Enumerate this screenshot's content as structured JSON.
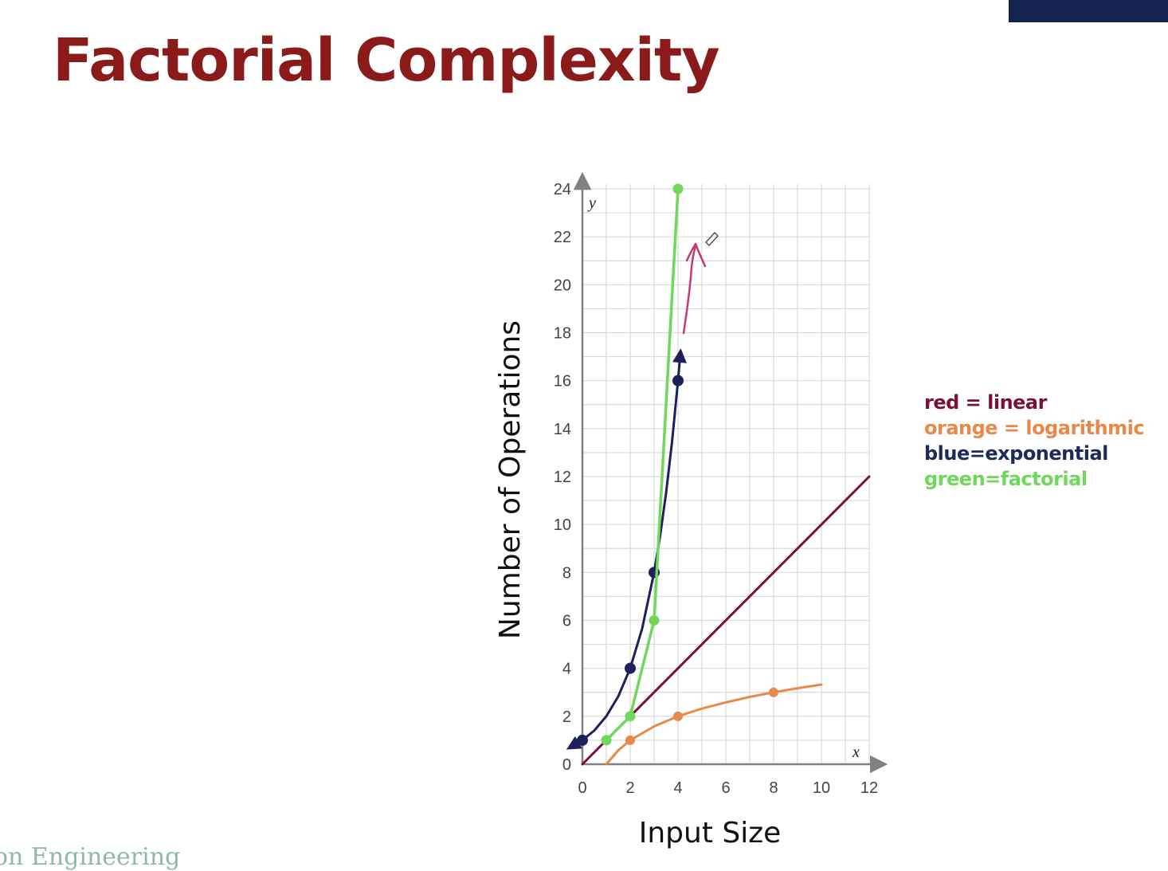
{
  "slide": {
    "title": "Factorial Complexity",
    "footer": "on Engineering"
  },
  "colors": {
    "title": "#8b1a1a",
    "linear": "#7a1038",
    "logarithmic": "#e8894a",
    "exponential": "#1e1f5c",
    "factorial": "#6fd85a",
    "annotation": "#c23a78",
    "grid": "#d9d9d9",
    "axis": "#808080"
  },
  "legend": [
    {
      "text": "red = linear",
      "color": "#7a1038"
    },
    {
      "text": "orange = logarithmic",
      "color": "#e8894a"
    },
    {
      "text": "blue=exponential",
      "color": "#1e2a5c"
    },
    {
      "text": "green=factorial",
      "color": "#6fd85a"
    }
  ],
  "chart_data": {
    "type": "line",
    "xlabel": "Input Size",
    "ylabel": "Number of Operations",
    "x_var": "x",
    "y_var": "y",
    "xlim": [
      0,
      12
    ],
    "ylim": [
      0,
      24
    ],
    "x_ticks": [
      0,
      2,
      4,
      6,
      8,
      10,
      12
    ],
    "y_ticks": [
      0,
      2,
      4,
      6,
      8,
      10,
      12,
      14,
      16,
      18,
      20,
      22,
      24
    ],
    "grid": true,
    "legend_position": "right",
    "series": [
      {
        "key": "linear",
        "points": [
          [
            0,
            0
          ],
          [
            12,
            12
          ]
        ],
        "markers": []
      },
      {
        "key": "logarithmic",
        "points": [
          [
            1,
            0
          ],
          [
            1.5,
            0.58
          ],
          [
            2,
            1
          ],
          [
            3,
            1.58
          ],
          [
            4,
            2
          ],
          [
            5,
            2.32
          ],
          [
            6,
            2.58
          ],
          [
            7,
            2.81
          ],
          [
            8,
            3
          ],
          [
            9,
            3.17
          ],
          [
            10,
            3.32
          ]
        ],
        "markers": [
          [
            2,
            1
          ],
          [
            4,
            2
          ],
          [
            8,
            3
          ]
        ]
      },
      {
        "key": "exponential",
        "points": [
          [
            -0.5,
            0.71
          ],
          [
            0,
            1
          ],
          [
            0.5,
            1.41
          ],
          [
            1,
            2
          ],
          [
            1.5,
            2.83
          ],
          [
            2,
            4
          ],
          [
            2.5,
            5.66
          ],
          [
            3,
            8
          ],
          [
            3.25,
            9.51
          ],
          [
            3.5,
            11.31
          ],
          [
            3.75,
            13.45
          ],
          [
            4,
            16
          ],
          [
            4.1,
            17.15
          ]
        ],
        "markers": [
          [
            0,
            1
          ],
          [
            2,
            4
          ],
          [
            3,
            8
          ],
          [
            4,
            16
          ]
        ],
        "arrow_ends": true
      },
      {
        "key": "factorial",
        "points": [
          [
            1,
            1
          ],
          [
            2,
            2
          ],
          [
            3,
            6
          ],
          [
            4,
            24
          ]
        ],
        "markers": [
          [
            1,
            1
          ],
          [
            2,
            2
          ],
          [
            3,
            6
          ],
          [
            4,
            24
          ]
        ]
      }
    ]
  }
}
